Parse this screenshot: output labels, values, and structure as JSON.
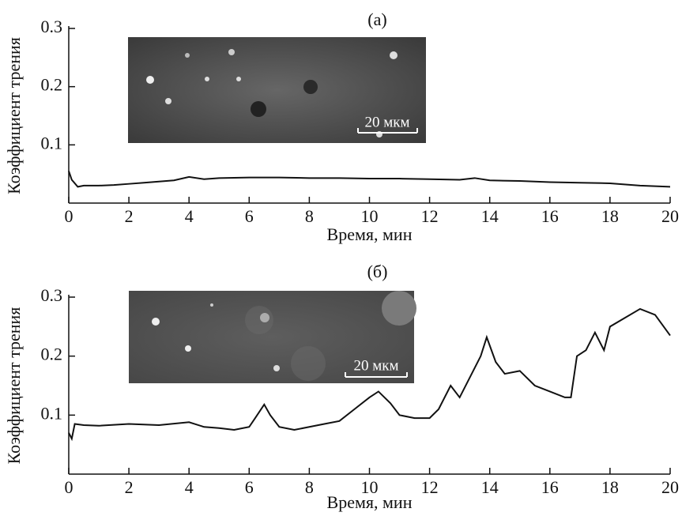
{
  "chart_data": [
    {
      "type": "line",
      "title": "(а)",
      "x_label": "Время, мин",
      "y_label": "Коэффициент трения",
      "inset_label": "20 мкм",
      "x": [
        0,
        0.1,
        0.3,
        0.5,
        1,
        1.5,
        2,
        2.5,
        3,
        3.5,
        4,
        4.5,
        5,
        6,
        7,
        8,
        9,
        10,
        11,
        12,
        13,
        13.5,
        14,
        15,
        16,
        17,
        18,
        19,
        20
      ],
      "series": [
        {
          "color": "#111111",
          "values": [
            0.055,
            0.04,
            0.028,
            0.03,
            0.03,
            0.031,
            0.033,
            0.035,
            0.037,
            0.039,
            0.045,
            0.041,
            0.043,
            0.044,
            0.044,
            0.043,
            0.043,
            0.042,
            0.042,
            0.041,
            0.04,
            0.043,
            0.039,
            0.038,
            0.036,
            0.035,
            0.034,
            0.03,
            0.028
          ]
        }
      ],
      "xlim": [
        0,
        20
      ],
      "xticks": [
        0,
        2,
        4,
        6,
        8,
        10,
        12,
        14,
        16,
        18,
        20
      ],
      "ylim": [
        0,
        0.3
      ],
      "yticks": [
        0.1,
        0.2,
        0.3
      ]
    },
    {
      "type": "line",
      "title": "(б)",
      "x_label": "Время, мин",
      "y_label": "Коэффициент трения",
      "inset_label": "20 мкм",
      "x": [
        0,
        0.1,
        0.2,
        0.5,
        1,
        2,
        3,
        4,
        4.5,
        5,
        5.5,
        6,
        6.2,
        6.5,
        6.7,
        7,
        7.5,
        8,
        8.5,
        9,
        9.5,
        10,
        10.3,
        10.7,
        11,
        11.5,
        12,
        12.3,
        12.7,
        13,
        13.3,
        13.7,
        13.9,
        14.2,
        14.5,
        15,
        15.5,
        16,
        16.5,
        16.7,
        16.9,
        17.2,
        17.5,
        17.8,
        18,
        18.5,
        19,
        19.5,
        20
      ],
      "series": [
        {
          "color": "#111111",
          "values": [
            0.07,
            0.06,
            0.085,
            0.083,
            0.082,
            0.085,
            0.083,
            0.088,
            0.08,
            0.078,
            0.075,
            0.08,
            0.095,
            0.118,
            0.1,
            0.08,
            0.075,
            0.08,
            0.085,
            0.09,
            0.11,
            0.13,
            0.14,
            0.12,
            0.1,
            0.095,
            0.095,
            0.11,
            0.15,
            0.13,
            0.16,
            0.2,
            0.232,
            0.19,
            0.17,
            0.175,
            0.15,
            0.14,
            0.13,
            0.13,
            0.2,
            0.21,
            0.24,
            0.21,
            0.25,
            0.265,
            0.28,
            0.27,
            0.235
          ]
        }
      ],
      "xlim": [
        0,
        20
      ],
      "xticks": [
        0,
        2,
        4,
        6,
        8,
        10,
        12,
        14,
        16,
        18,
        20
      ],
      "ylim": [
        0,
        0.3
      ],
      "yticks": [
        0.1,
        0.2,
        0.3
      ]
    }
  ]
}
